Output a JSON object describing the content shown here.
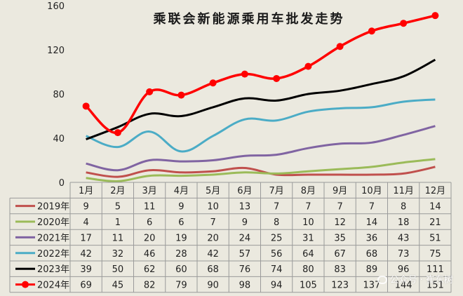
{
  "chart_data": {
    "type": "line",
    "title": "乘联会新能源乘用车批发走势",
    "categories": [
      "1月",
      "2月",
      "3月",
      "4月",
      "5月",
      "6月",
      "7月",
      "8月",
      "9月",
      "10月",
      "11月",
      "12月"
    ],
    "ylim": [
      0,
      160
    ],
    "yticks": [
      0,
      40,
      80,
      120,
      160
    ],
    "grid": false,
    "legend": "bottom-table",
    "series": [
      {
        "name": "2019年",
        "color": "#c0504d",
        "values": [
          9,
          5,
          11,
          9,
          10,
          13,
          7,
          7,
          7,
          7,
          8,
          14
        ]
      },
      {
        "name": "2020年",
        "color": "#9bbb59",
        "values": [
          4,
          1,
          6,
          6,
          7,
          9,
          8,
          10,
          12,
          14,
          18,
          21
        ]
      },
      {
        "name": "2021年",
        "color": "#8064a2",
        "values": [
          17,
          11,
          20,
          19,
          20,
          24,
          25,
          31,
          35,
          36,
          43,
          51
        ]
      },
      {
        "name": "2022年",
        "color": "#4bacc6",
        "values": [
          42,
          32,
          46,
          28,
          42,
          57,
          56,
          64,
          67,
          68,
          73,
          75
        ]
      },
      {
        "name": "2023年",
        "color": "#000000",
        "values": [
          39,
          50,
          62,
          60,
          68,
          76,
          74,
          80,
          83,
          89,
          96,
          111
        ]
      },
      {
        "name": "2024年",
        "color": "#ff0000",
        "values": [
          69,
          45,
          82,
          79,
          90,
          98,
          94,
          105,
          123,
          137,
          144,
          151
        ],
        "markers": true
      }
    ]
  },
  "watermark": {
    "text": "公众号 · 崔东树",
    "icon": "wechat-icon"
  }
}
